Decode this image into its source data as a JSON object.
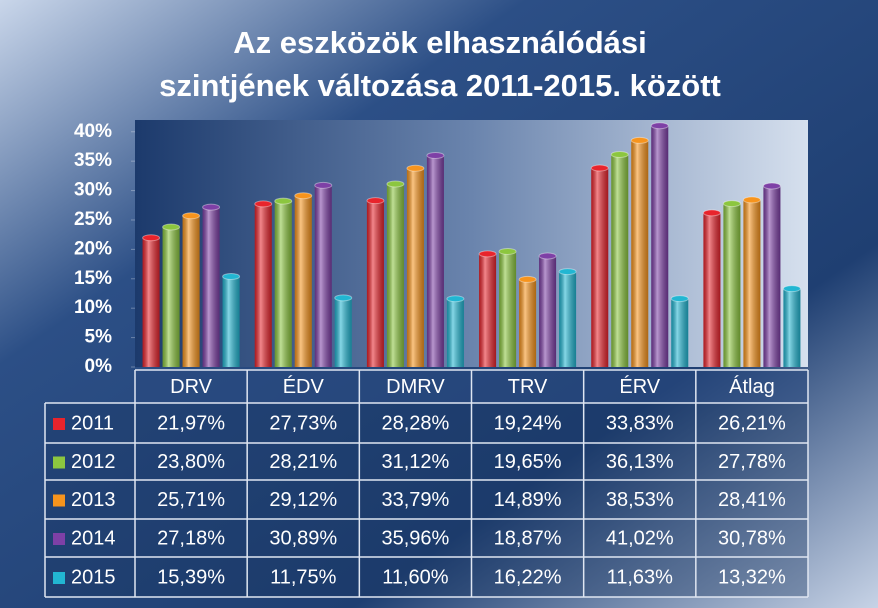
{
  "chart_data": {
    "type": "bar",
    "title": [
      "Az eszközök elhasználódási",
      "szintjének változása 2011-2015. között"
    ],
    "categories": [
      "DRV",
      "ÉDV",
      "DMRV",
      "TRV",
      "ÉRV",
      "Átlag"
    ],
    "series": [
      {
        "name": "2011",
        "color": "#e8242c",
        "values": [
          21.97,
          27.73,
          28.28,
          19.24,
          33.83,
          26.21
        ],
        "value_labels": [
          "21,97%",
          "27,73%",
          "28,28%",
          "19,24%",
          "33,83%",
          "26,21%"
        ]
      },
      {
        "name": "2012",
        "color": "#8cc63f",
        "values": [
          23.8,
          28.21,
          31.12,
          19.65,
          36.13,
          27.78
        ],
        "value_labels": [
          "23,80%",
          "28,21%",
          "31,12%",
          "19,65%",
          "36,13%",
          "27,78%"
        ]
      },
      {
        "name": "2013",
        "color": "#f7941d",
        "values": [
          25.71,
          29.12,
          33.79,
          14.89,
          38.53,
          28.41
        ],
        "value_labels": [
          "25,71%",
          "29,12%",
          "33,79%",
          "14,89%",
          "38,53%",
          "28,41%"
        ]
      },
      {
        "name": "2014",
        "color": "#7e40a6",
        "values": [
          27.18,
          30.89,
          35.96,
          18.87,
          41.02,
          30.78
        ],
        "value_labels": [
          "27,18%",
          "30,89%",
          "35,96%",
          "18,87%",
          "41,02%",
          "30,78%"
        ]
      },
      {
        "name": "2015",
        "color": "#22b6d2",
        "values": [
          15.39,
          11.75,
          11.6,
          16.22,
          11.63,
          13.32
        ],
        "value_labels": [
          "15,39%",
          "11,75%",
          "11,60%",
          "16,22%",
          "11,63%",
          "13,32%"
        ]
      }
    ],
    "ylim": [
      0,
      42
    ],
    "yticks": [
      {
        "value": 0,
        "label": "0%"
      },
      {
        "value": 5,
        "label": "5%"
      },
      {
        "value": 10,
        "label": "10%"
      },
      {
        "value": 15,
        "label": "15%"
      },
      {
        "value": 20,
        "label": "20%"
      },
      {
        "value": 25,
        "label": "25%"
      },
      {
        "value": 30,
        "label": "30%"
      },
      {
        "value": 35,
        "label": "35%"
      },
      {
        "value": 40,
        "label": "40%"
      }
    ]
  }
}
